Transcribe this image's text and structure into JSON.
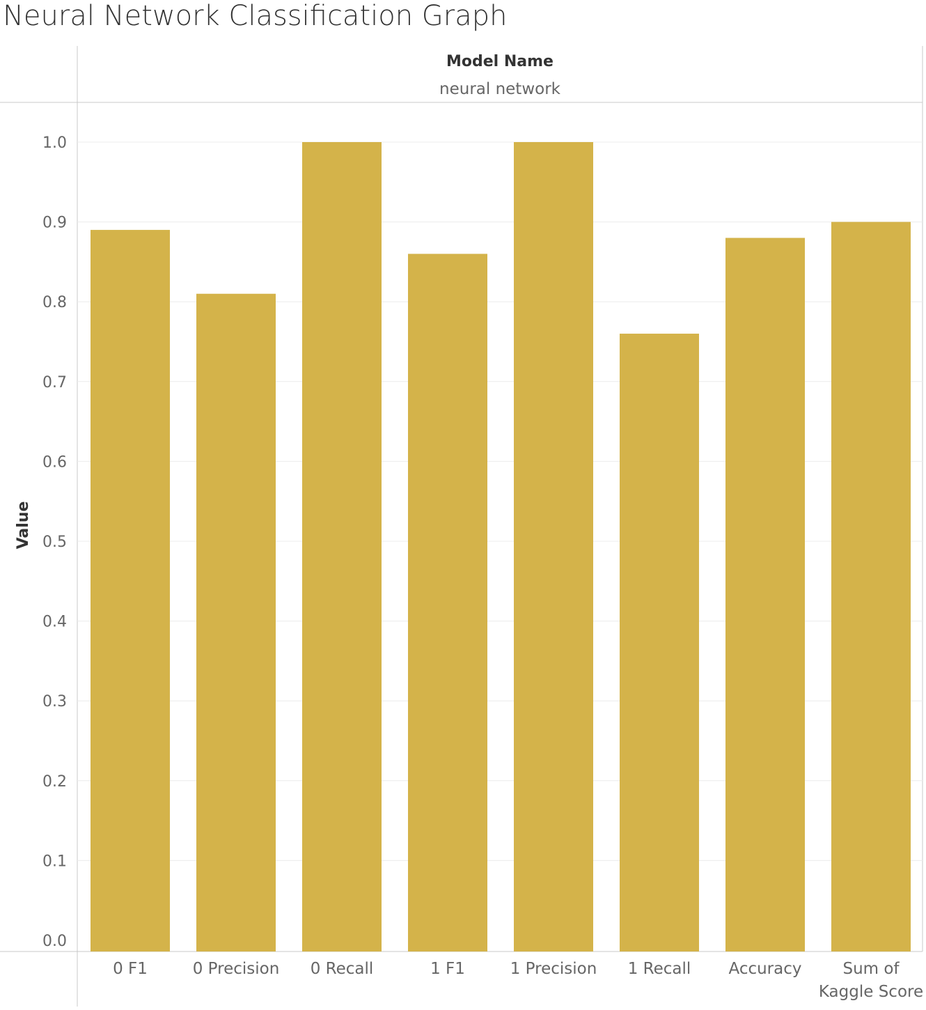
{
  "title": "Neural Network Classification Graph",
  "colors": {
    "bar": "#d4b34a",
    "grid": "#ececec",
    "frame": "#c8c8c8"
  },
  "chart_data": {
    "type": "bar",
    "title": "Neural Network Classification Graph",
    "header_title": "Model Name",
    "header_value": "neural network",
    "xlabel": "",
    "ylabel": "Value",
    "ylim": [
      0,
      1.0
    ],
    "yticks": [
      "0.0",
      "0.1",
      "0.2",
      "0.3",
      "0.4",
      "0.5",
      "0.6",
      "0.7",
      "0.8",
      "0.9",
      "1.0"
    ],
    "grid": true,
    "categories": [
      [
        "0 F1"
      ],
      [
        "0 Precision"
      ],
      [
        "0 Recall"
      ],
      [
        "1 F1"
      ],
      [
        "1 Precision"
      ],
      [
        "1 Recall"
      ],
      [
        "Accuracy"
      ],
      [
        "Sum of",
        "Kaggle Score"
      ]
    ],
    "values": [
      0.89,
      0.81,
      1.0,
      0.86,
      1.0,
      0.76,
      0.88,
      0.9
    ]
  }
}
